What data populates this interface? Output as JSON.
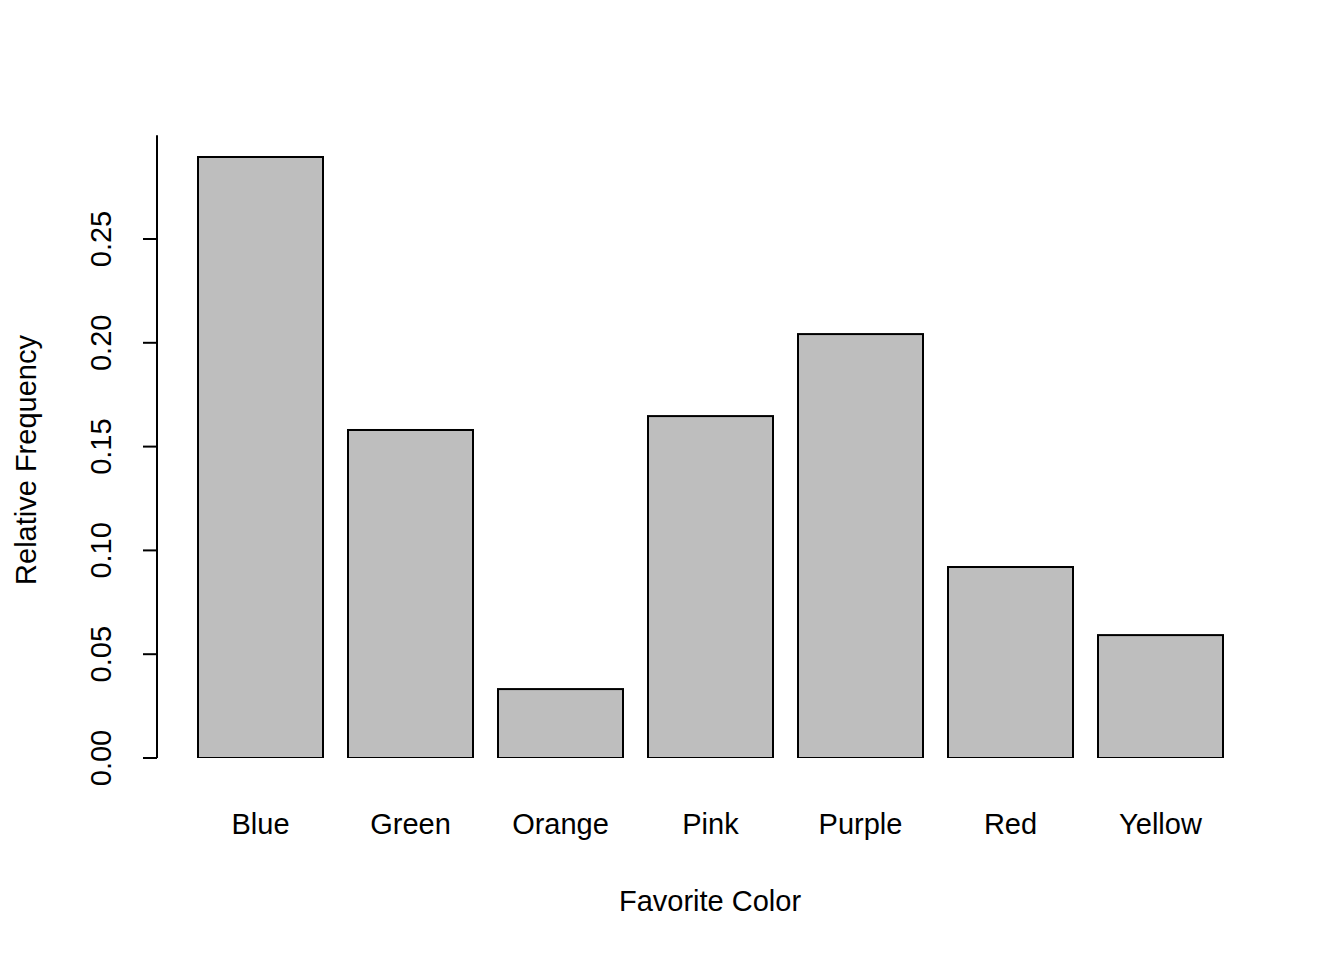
{
  "chart_data": {
    "type": "bar",
    "x_label": "Favorite Color",
    "y_label": "Relative Frequency",
    "categories": [
      "Blue",
      "Green",
      "Orange",
      "Pink",
      "Purple",
      "Red",
      "Yellow"
    ],
    "values": [
      0.2895,
      0.158,
      0.0332,
      0.1647,
      0.2042,
      0.092,
      0.0592
    ],
    "color": "#bebebe",
    "ylim": [
      0,
      0.3
    ],
    "yticks": [
      {
        "value": 0,
        "label": "0.00"
      },
      0.05,
      {
        "value": 0.1,
        "label": "0.10"
      },
      0.15,
      {
        "value": 0.2,
        "label": "0.20"
      },
      0.25
    ],
    "grid": false
  }
}
